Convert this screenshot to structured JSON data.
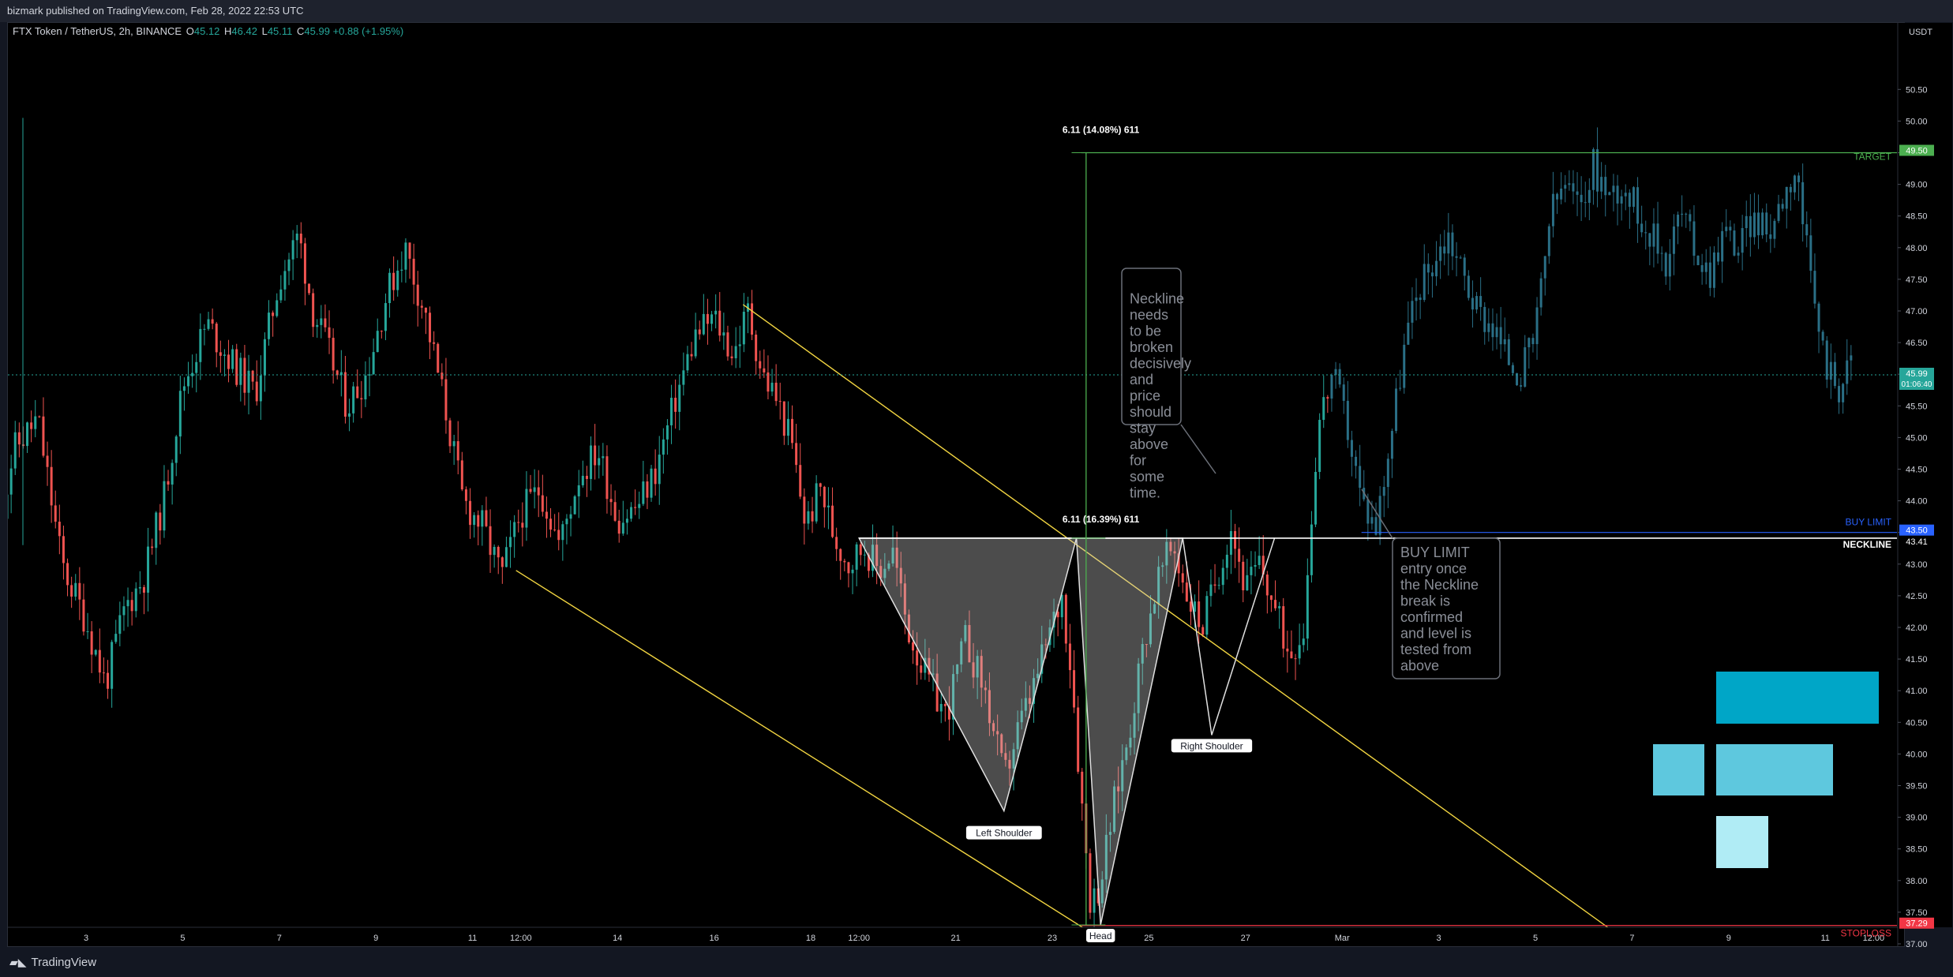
{
  "header": {
    "published": "bizmark published on TradingView.com, Feb 28, 2022 22:53 UTC"
  },
  "legend": {
    "symbol": "FTX Token / TetherUS, 2h, BINANCE",
    "o_label": "O",
    "o": "45.12",
    "h_label": "H",
    "h": "46.42",
    "l_label": "L",
    "l": "45.11",
    "c_label": "C",
    "c": "45.99",
    "change": "+0.88 (+1.95%)"
  },
  "footer": {
    "brand": "TradingView"
  },
  "chart_data": {
    "type": "candlestick",
    "title": "FTX Token / TetherUS, 2h, BINANCE",
    "currency": "USDT",
    "ylim": [
      36.6,
      50.7
    ],
    "y_ticks": [
      "50.50",
      "50.00",
      "49.50",
      "49.00",
      "48.50",
      "48.00",
      "47.50",
      "47.00",
      "46.50",
      "46.00",
      "45.50",
      "45.00",
      "44.50",
      "44.00",
      "43.50",
      "43.00",
      "42.50",
      "42.00",
      "41.50",
      "41.00",
      "40.50",
      "40.00",
      "39.50",
      "39.00",
      "38.50",
      "38.00",
      "37.50",
      "37.00"
    ],
    "x_ticks": [
      {
        "label": "3",
        "slot": 3
      },
      {
        "label": "5",
        "slot": 5
      },
      {
        "label": "7",
        "slot": 7
      },
      {
        "label": "9",
        "slot": 9
      },
      {
        "label": "11",
        "slot": 11
      },
      {
        "label": "12:00",
        "slot": 12
      },
      {
        "label": "14",
        "slot": 14
      },
      {
        "label": "16",
        "slot": 16
      },
      {
        "label": "18",
        "slot": 18
      },
      {
        "label": "12:00",
        "slot": 19
      },
      {
        "label": "21",
        "slot": 21
      },
      {
        "label": "23",
        "slot": 23
      },
      {
        "label": "25",
        "slot": 25
      },
      {
        "label": "27",
        "slot": 27
      },
      {
        "label": "Mar",
        "slot": 29
      },
      {
        "label": "3",
        "slot": 31
      },
      {
        "label": "5",
        "slot": 33
      },
      {
        "label": "7",
        "slot": 35
      },
      {
        "label": "9",
        "slot": 37
      },
      {
        "label": "11",
        "slot": 39
      },
      {
        "label": "12:00",
        "slot": 40
      }
    ],
    "price_path": [
      [
        1.2,
        43.6
      ],
      [
        1.5,
        44.8
      ],
      [
        2.0,
        45.3
      ],
      [
        2.5,
        43.0
      ],
      [
        3.0,
        42.1
      ],
      [
        3.4,
        41.1
      ],
      [
        3.8,
        42.3
      ],
      [
        4.2,
        42.8
      ],
      [
        4.6,
        44.0
      ],
      [
        5.0,
        45.8
      ],
      [
        5.5,
        46.8
      ],
      [
        6.0,
        46.2
      ],
      [
        6.5,
        45.7
      ],
      [
        7.0,
        47.5
      ],
      [
        7.4,
        48.2
      ],
      [
        7.7,
        47.0
      ],
      [
        8.0,
        46.4
      ],
      [
        8.4,
        45.5
      ],
      [
        8.8,
        46.0
      ],
      [
        9.2,
        47.2
      ],
      [
        9.6,
        48.0
      ],
      [
        10.0,
        47.0
      ],
      [
        10.4,
        45.6
      ],
      [
        10.8,
        44.0
      ],
      [
        11.2,
        43.6
      ],
      [
        11.6,
        42.8
      ],
      [
        12.0,
        43.8
      ],
      [
        12.4,
        44.2
      ],
      [
        12.8,
        43.3
      ],
      [
        13.2,
        44.4
      ],
      [
        13.6,
        44.8
      ],
      [
        14.0,
        43.7
      ],
      [
        14.4,
        43.9
      ],
      [
        14.8,
        44.5
      ],
      [
        15.2,
        45.6
      ],
      [
        15.6,
        46.6
      ],
      [
        16.0,
        46.9
      ],
      [
        16.4,
        46.3
      ],
      [
        16.7,
        47.0
      ],
      [
        17.0,
        46.0
      ],
      [
        17.3,
        45.6
      ],
      [
        17.6,
        44.9
      ],
      [
        17.9,
        43.6
      ],
      [
        18.2,
        44.2
      ],
      [
        18.5,
        43.4
      ],
      [
        18.8,
        43.0
      ],
      [
        19.1,
        43.3
      ],
      [
        19.4,
        42.9
      ],
      [
        19.7,
        43.2
      ],
      [
        20.0,
        42.0
      ],
      [
        20.4,
        41.2
      ],
      [
        20.8,
        40.6
      ],
      [
        21.2,
        41.8
      ],
      [
        21.6,
        41.0
      ],
      [
        22.0,
        39.6
      ],
      [
        22.3,
        40.4
      ],
      [
        22.6,
        41.0
      ],
      [
        22.9,
        41.8
      ],
      [
        23.2,
        42.5
      ],
      [
        23.4,
        41.3
      ],
      [
        23.6,
        39.3
      ],
      [
        23.8,
        37.6
      ],
      [
        24.0,
        38.0
      ],
      [
        24.3,
        39.3
      ],
      [
        24.6,
        40.4
      ],
      [
        24.9,
        41.8
      ],
      [
        25.2,
        42.8
      ],
      [
        25.5,
        43.3
      ],
      [
        25.8,
        42.5
      ],
      [
        26.1,
        42.0
      ],
      [
        26.4,
        42.8
      ],
      [
        26.7,
        43.6
      ],
      [
        27.0,
        42.6
      ],
      [
        27.3,
        43.0
      ],
      [
        27.6,
        42.3
      ],
      [
        27.9,
        41.6
      ],
      [
        28.2,
        42.0
      ],
      [
        28.5,
        45.2
      ],
      [
        28.8,
        46.0
      ],
      [
        29.1,
        45.2
      ],
      [
        29.4,
        44.0
      ],
      [
        29.7,
        43.6
      ],
      [
        30.0,
        45.0
      ],
      [
        30.3,
        46.5
      ],
      [
        30.6,
        47.4
      ],
      [
        30.9,
        47.8
      ],
      [
        31.2,
        48.2
      ],
      [
        31.5,
        47.6
      ],
      [
        31.8,
        47.0
      ],
      [
        32.1,
        46.8
      ],
      [
        32.4,
        46.3
      ],
      [
        32.7,
        46.0
      ],
      [
        33.0,
        46.6
      ],
      [
        33.3,
        48.5
      ],
      [
        33.6,
        49.0
      ],
      [
        33.9,
        48.6
      ],
      [
        34.2,
        49.3
      ],
      [
        34.5,
        48.8
      ],
      [
        34.8,
        49.0
      ],
      [
        35.1,
        48.6
      ],
      [
        35.4,
        48.2
      ],
      [
        35.7,
        47.8
      ],
      [
        36.0,
        48.6
      ],
      [
        36.3,
        48.0
      ],
      [
        36.6,
        47.6
      ],
      [
        36.9,
        48.3
      ],
      [
        37.2,
        48.0
      ],
      [
        37.5,
        48.5
      ],
      [
        37.8,
        48.2
      ],
      [
        38.1,
        48.8
      ],
      [
        38.4,
        49.3
      ],
      [
        38.7,
        47.4
      ],
      [
        39.0,
        46.2
      ],
      [
        39.3,
        45.8
      ],
      [
        39.6,
        46.3
      ]
    ],
    "horizontal_levels": [
      {
        "name": "TARGET",
        "price": "49.50",
        "color": "#4caf50"
      },
      {
        "name": "BUY LIMIT",
        "price": "43.50",
        "color": "#2962ff"
      },
      {
        "name": "NECKLINE",
        "price": "43.41",
        "color": "#ffffff"
      },
      {
        "name": "STOPLOSS",
        "price": "37.29",
        "color": "#f23645"
      }
    ],
    "current_price": {
      "value": "45.99",
      "countdown": "01:06:40"
    },
    "pattern": {
      "neckline": 43.41,
      "points": [
        {
          "label": "Left Shoulder",
          "slot": 22.0,
          "price": 39.1
        },
        {
          "label": "Head",
          "slot": 24.0,
          "price": 37.3
        },
        {
          "label": "Right Shoulder",
          "slot": 26.3,
          "price": 40.3
        }
      ]
    },
    "measurements": [
      {
        "text": "6.11 (14.08%) 611",
        "from": 43.41,
        "to": 49.5
      },
      {
        "text": "6.11 (16.39%) 611",
        "from": 37.3,
        "to": 43.41
      }
    ],
    "notes": [
      "Neckline needs to be broken decisively and price should stay above for some time.",
      "BUY LIMIT entry once the Neckline break is confirmed and level is tested from above"
    ],
    "colors": {
      "up": "#26a69a",
      "down": "#ef5350",
      "projection": "#2a6f86",
      "channel": "#f2d541"
    }
  }
}
